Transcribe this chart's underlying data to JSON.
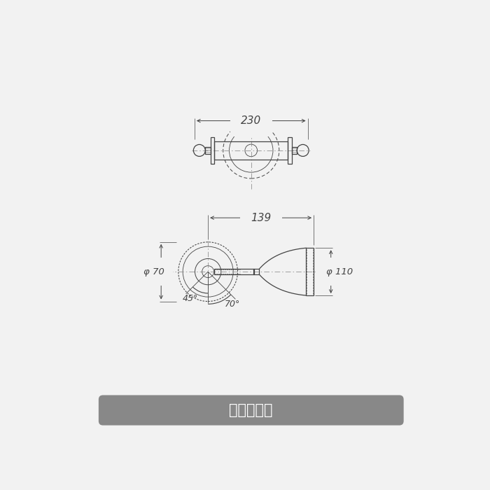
{
  "bg_color": "#f2f2f2",
  "line_color": "#444444",
  "center_line_color": "#888888",
  "dim_color": "#444444",
  "title_bg": "#888888",
  "title_text": "本体サイズ",
  "title_text_color": "#ffffff",
  "dim_230": "230",
  "dim_139": "139",
  "dim_70": "φ 70",
  "dim_110": "φ 110",
  "dim_45": "45°",
  "dim_70deg": "70°"
}
